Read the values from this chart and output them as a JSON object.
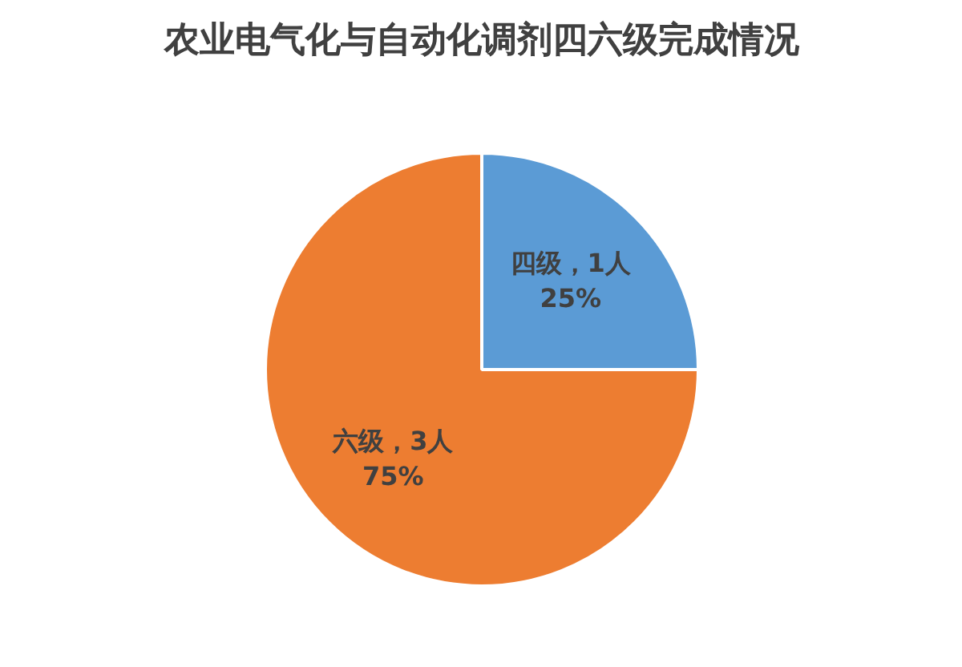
{
  "chart_data": {
    "type": "pie",
    "title": "农业电气化与自动化调剂四六级完成情况",
    "categories": [
      "四级",
      "六级"
    ],
    "values": [
      1,
      3
    ],
    "colors": [
      "#5b9bd5",
      "#ed7d31"
    ],
    "value_labels": [
      "，1人\n25%",
      "，3人\n75%"
    ],
    "legend": false
  }
}
